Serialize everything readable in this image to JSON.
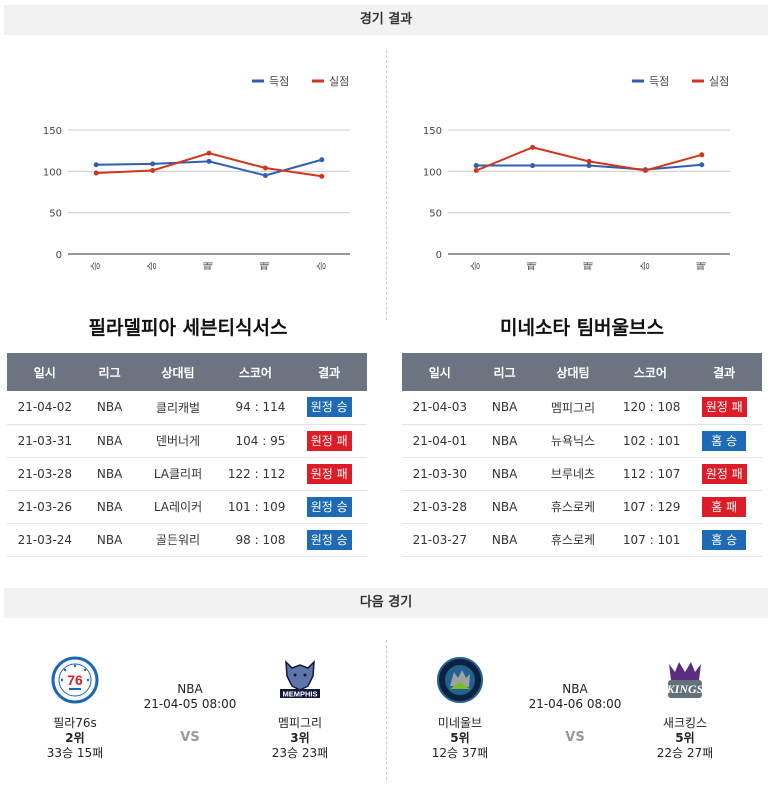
{
  "sections": {
    "result_title": "경기 결과",
    "next_title": "다음 경기"
  },
  "legend": {
    "score": "득점",
    "allowed": "실점"
  },
  "colors": {
    "score": "#2f5fb3",
    "allowed": "#d0361f",
    "win_badge": "#1e6ab5",
    "loss_badge": "#dc1d27"
  },
  "charts": [
    {
      "chart_data": {
        "type": "line",
        "categories": [
          "승",
          "승",
          "패",
          "패",
          "승"
        ],
        "yticks": [
          "150",
          "100",
          "50",
          "0"
        ],
        "ylim": [
          0,
          150
        ],
        "grid": true,
        "legend_position": "top-right",
        "series": [
          {
            "name": "득점",
            "values": [
              108,
              109,
              112,
              95,
              114
            ]
          },
          {
            "name": "실점",
            "values": [
              98,
              101,
              122,
              104,
              94
            ]
          }
        ]
      }
    },
    {
      "chart_data": {
        "type": "line",
        "categories": [
          "승",
          "패",
          "패",
          "승",
          "패"
        ],
        "yticks": [
          "150",
          "100",
          "50",
          "0"
        ],
        "ylim": [
          0,
          150
        ],
        "grid": true,
        "legend_position": "top-right",
        "series": [
          {
            "name": "득점",
            "values": [
              107,
              107,
              107,
              102,
              108
            ]
          },
          {
            "name": "실점",
            "values": [
              101,
              129,
              112,
              101,
              120
            ]
          }
        ]
      }
    }
  ],
  "columns": [
    "일시",
    "리그",
    "상대팀",
    "스코어",
    "결과"
  ],
  "teams": [
    {
      "title": "필라델피아 세븐티식서스",
      "rows": [
        {
          "date": "21-04-02",
          "league": "NBA",
          "opponent": "클리캐벌",
          "score": "94 : 114",
          "result": "원정 승",
          "color": "blue"
        },
        {
          "date": "21-03-31",
          "league": "NBA",
          "opponent": "덴버너게",
          "score": "104 : 95",
          "result": "원정 패",
          "color": "red"
        },
        {
          "date": "21-03-28",
          "league": "NBA",
          "opponent": "LA클리퍼",
          "score": "122 : 112",
          "result": "원정 패",
          "color": "red"
        },
        {
          "date": "21-03-26",
          "league": "NBA",
          "opponent": "LA레이커",
          "score": "101 : 109",
          "result": "원정 승",
          "color": "blue"
        },
        {
          "date": "21-03-24",
          "league": "NBA",
          "opponent": "골든워리",
          "score": "98 : 108",
          "result": "원정 승",
          "color": "blue"
        }
      ]
    },
    {
      "title": "미네소타 팀버울브스",
      "rows": [
        {
          "date": "21-04-03",
          "league": "NBA",
          "opponent": "멤피그리",
          "score": "120 : 108",
          "result": "원정 패",
          "color": "red"
        },
        {
          "date": "21-04-01",
          "league": "NBA",
          "opponent": "뉴욕닉스",
          "score": "102 : 101",
          "result": "홈 승",
          "color": "blue"
        },
        {
          "date": "21-03-30",
          "league": "NBA",
          "opponent": "브루네츠",
          "score": "112 : 107",
          "result": "원정 패",
          "color": "red"
        },
        {
          "date": "21-03-28",
          "league": "NBA",
          "opponent": "휴스로케",
          "score": "107 : 129",
          "result": "홈 패",
          "color": "red"
        },
        {
          "date": "21-03-27",
          "league": "NBA",
          "opponent": "휴스로케",
          "score": "107 : 101",
          "result": "홈 승",
          "color": "blue"
        }
      ]
    }
  ],
  "next_games": [
    {
      "league": "NBA",
      "datetime": "21-04-05 08:00",
      "vs": "VS",
      "home": {
        "name": "필라76s",
        "rank": "2위",
        "record": "33승 15패",
        "logo": "76ers-logo"
      },
      "away": {
        "name": "멤피그리",
        "rank": "3위",
        "record": "23승 23패",
        "logo": "grizzlies-logo"
      }
    },
    {
      "league": "NBA",
      "datetime": "21-04-06 08:00",
      "vs": "VS",
      "home": {
        "name": "미네울브",
        "rank": "5위",
        "record": "12승 37패",
        "logo": "timberwolves-logo"
      },
      "away": {
        "name": "새크킹스",
        "rank": "5위",
        "record": "22승 27패",
        "logo": "kings-logo"
      }
    }
  ]
}
